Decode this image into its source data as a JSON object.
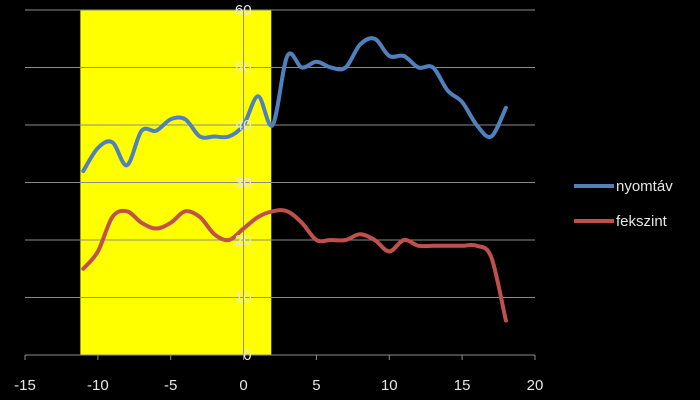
{
  "chart_data": {
    "type": "line",
    "title": "",
    "xlabel": "",
    "ylabel": "",
    "xlim": [
      -15,
      20
    ],
    "ylim": [
      0,
      60
    ],
    "x_ticks": [
      -15,
      -10,
      -5,
      0,
      5,
      10,
      15,
      20
    ],
    "y_ticks": [
      0,
      10,
      20,
      30,
      40,
      50,
      60
    ],
    "x_tick_labels": [
      "-15",
      "-10",
      "-5",
      "0",
      "5",
      "10",
      "15",
      "20"
    ],
    "y_tick_labels": [
      "0",
      "10",
      "20",
      "30",
      "40",
      "50",
      "60"
    ],
    "grid": "horizontal",
    "legend": "right",
    "highlight_region": {
      "x_start": -11.2,
      "x_end": 1.9,
      "color": "#ffff00"
    },
    "series": [
      {
        "name": "nyomtáv",
        "color": "#4f81bd",
        "x": [
          -11,
          -10,
          -9,
          -8,
          -7,
          -6,
          -5,
          -4,
          -3,
          -2,
          -1,
          0,
          1,
          2,
          3,
          4,
          5,
          6,
          7,
          8,
          9,
          10,
          11,
          12,
          13,
          14,
          15,
          16,
          17,
          18
        ],
        "y": [
          32,
          36,
          37,
          33,
          39,
          39,
          41,
          41,
          38,
          38,
          38,
          40,
          45,
          40,
          52,
          50,
          51,
          50,
          50,
          54,
          55,
          52,
          52,
          50,
          50,
          46,
          44,
          40,
          38,
          43
        ]
      },
      {
        "name": "fekszint",
        "color": "#c0504d",
        "x": [
          -11,
          -10,
          -9,
          -8,
          -7,
          -6,
          -5,
          -4,
          -3,
          -2,
          -1,
          0,
          1,
          2,
          3,
          4,
          5,
          6,
          7,
          8,
          9,
          10,
          11,
          12,
          13,
          14,
          15,
          16,
          17,
          18
        ],
        "y": [
          15,
          18,
          24,
          25,
          23,
          22,
          23,
          25,
          24,
          21,
          20,
          22,
          24,
          25,
          25,
          23,
          20,
          20,
          20,
          21,
          20,
          18,
          20,
          19,
          19,
          19,
          19,
          19,
          17,
          6
        ]
      }
    ]
  }
}
